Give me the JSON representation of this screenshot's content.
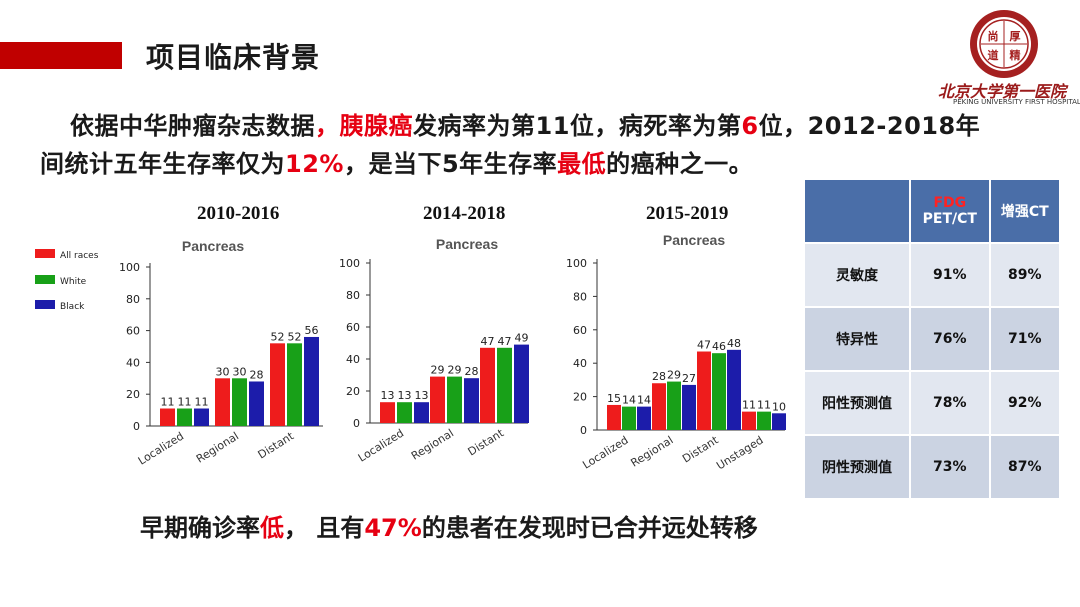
{
  "header": {
    "title": "项目临床背景"
  },
  "logo": {
    "name_cn": "北京大学第一医院",
    "name_en": "PEKING UNIVERSITY FIRST HOSPITAL",
    "seal_chars": [
      "尚",
      "厚",
      "道",
      "精"
    ]
  },
  "intro": {
    "line1": {
      "a": "依据中华肿瘤杂志数据",
      "b": "，",
      "c": "胰腺癌",
      "d": "发病率为第11位，病死率为第",
      "e": "6",
      "f": "位，2012-2018年"
    },
    "line2": {
      "a": "间统计五年生存率仅为",
      "b": "12%",
      "c": "，是当下5年生存率",
      "d": "最低",
      "e": "的癌种之一。"
    }
  },
  "colors": {
    "all_races": "#ee1c1c",
    "white": "#18a018",
    "black": "#1c1caa",
    "accent_red": "#e60012",
    "table_header": "#4a6ea8"
  },
  "legend": [
    "All races",
    "White",
    "Black"
  ],
  "chart_data": [
    {
      "type": "bar",
      "period": "2010-2016",
      "title": "Pancreas",
      "ylim": [
        0,
        100
      ],
      "yticks": [
        0,
        20,
        40,
        60,
        80,
        100
      ],
      "categories": [
        "Localized",
        "Regional",
        "Distant"
      ],
      "series": [
        {
          "name": "All races",
          "values": [
            11,
            30,
            52
          ]
        },
        {
          "name": "White",
          "values": [
            11,
            30,
            52
          ]
        },
        {
          "name": "Black",
          "values": [
            11,
            28,
            56
          ]
        }
      ]
    },
    {
      "type": "bar",
      "period": "2014-2018",
      "title": "Pancreas",
      "ylim": [
        0,
        100
      ],
      "yticks": [
        0,
        20,
        40,
        60,
        80,
        100
      ],
      "categories": [
        "Localized",
        "Regional",
        "Distant"
      ],
      "series": [
        {
          "name": "All races",
          "values": [
            13,
            29,
            47
          ]
        },
        {
          "name": "White",
          "values": [
            13,
            29,
            47
          ]
        },
        {
          "name": "Black",
          "values": [
            13,
            28,
            49
          ]
        }
      ]
    },
    {
      "type": "bar",
      "period": "2015-2019",
      "title": "Pancreas",
      "ylim": [
        0,
        100
      ],
      "yticks": [
        0,
        20,
        40,
        60,
        80,
        100
      ],
      "categories": [
        "Localized",
        "Regional",
        "Distant",
        "Unstaged"
      ],
      "series": [
        {
          "name": "All races",
          "values": [
            15,
            28,
            47,
            11
          ]
        },
        {
          "name": "White",
          "values": [
            14,
            29,
            46,
            11
          ]
        },
        {
          "name": "Black",
          "values": [
            14,
            27,
            48,
            10
          ]
        }
      ]
    }
  ],
  "table": {
    "headers": [
      "",
      "FDG",
      "PET/CT",
      "增强CT"
    ],
    "rows": [
      {
        "label": "灵敏度",
        "fdg": "91%",
        "ct": "89%"
      },
      {
        "label": "特异性",
        "fdg": "76%",
        "ct": "71%"
      },
      {
        "label": "阳性预测值",
        "fdg": "78%",
        "ct": "92%"
      },
      {
        "label": "阴性预测值",
        "fdg": "73%",
        "ct": "87%"
      }
    ]
  },
  "bottom": {
    "a": "早期确诊率",
    "b": "低",
    "c": "，  且有",
    "d": "47%",
    "e": "的患者在发现时已合并远处转移"
  }
}
